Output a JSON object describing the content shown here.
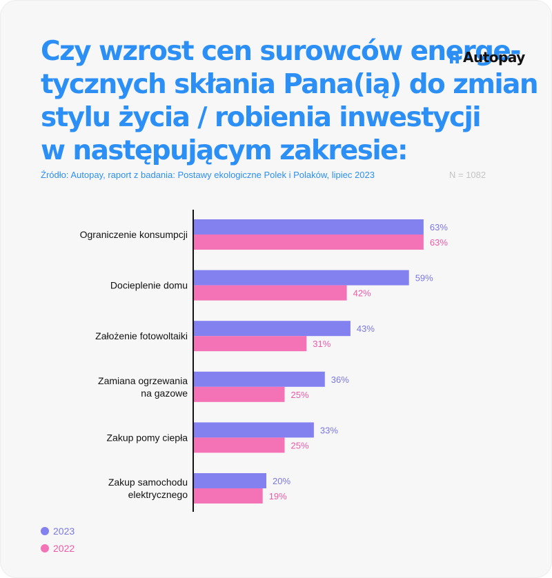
{
  "title_lines": [
    "Czy wzrost cen surowców energe-",
    "tycznych skłania Pana(ią) do zmian",
    "stylu życia / robienia inwestycji",
    "w następującym zakresie:"
  ],
  "source": "Źródło: Autopay, raport z badania: Postawy ekologiczne Polek i Polaków, lipiec 2023",
  "sample": "N = 1082",
  "logo": {
    "text": "Autopay",
    "icon": "autopay-logo-icon"
  },
  "colors": {
    "title": "#2b8ff6",
    "series_2023": "#8380f0",
    "series_2022": "#f472b6",
    "label_2023": "#7a77e6",
    "label_2022": "#ec5aa7"
  },
  "chart_data": {
    "type": "bar",
    "orientation": "horizontal",
    "categories": [
      [
        "Ograniczenie konsumpcji"
      ],
      [
        "Docieplenie domu"
      ],
      [
        "Założenie fotowoltaiki"
      ],
      [
        "Zamiana ogrzewania",
        "na gazowe"
      ],
      [
        "Zakup pomy ciepła"
      ],
      [
        "Zakup samochodu",
        "elektrycznego"
      ]
    ],
    "series": [
      {
        "name": "2023",
        "values": [
          63,
          59,
          43,
          36,
          33,
          20
        ],
        "labels": [
          "63%",
          "59%",
          "43%",
          "36%",
          "33%",
          "20%"
        ]
      },
      {
        "name": "2022",
        "values": [
          63,
          42,
          31,
          25,
          25,
          19
        ],
        "labels": [
          "63%",
          "42%",
          "31%",
          "25%",
          "25%",
          "19%"
        ]
      }
    ],
    "xlim": [
      0,
      100
    ],
    "grid": false,
    "legend_position": "bottom-left"
  }
}
